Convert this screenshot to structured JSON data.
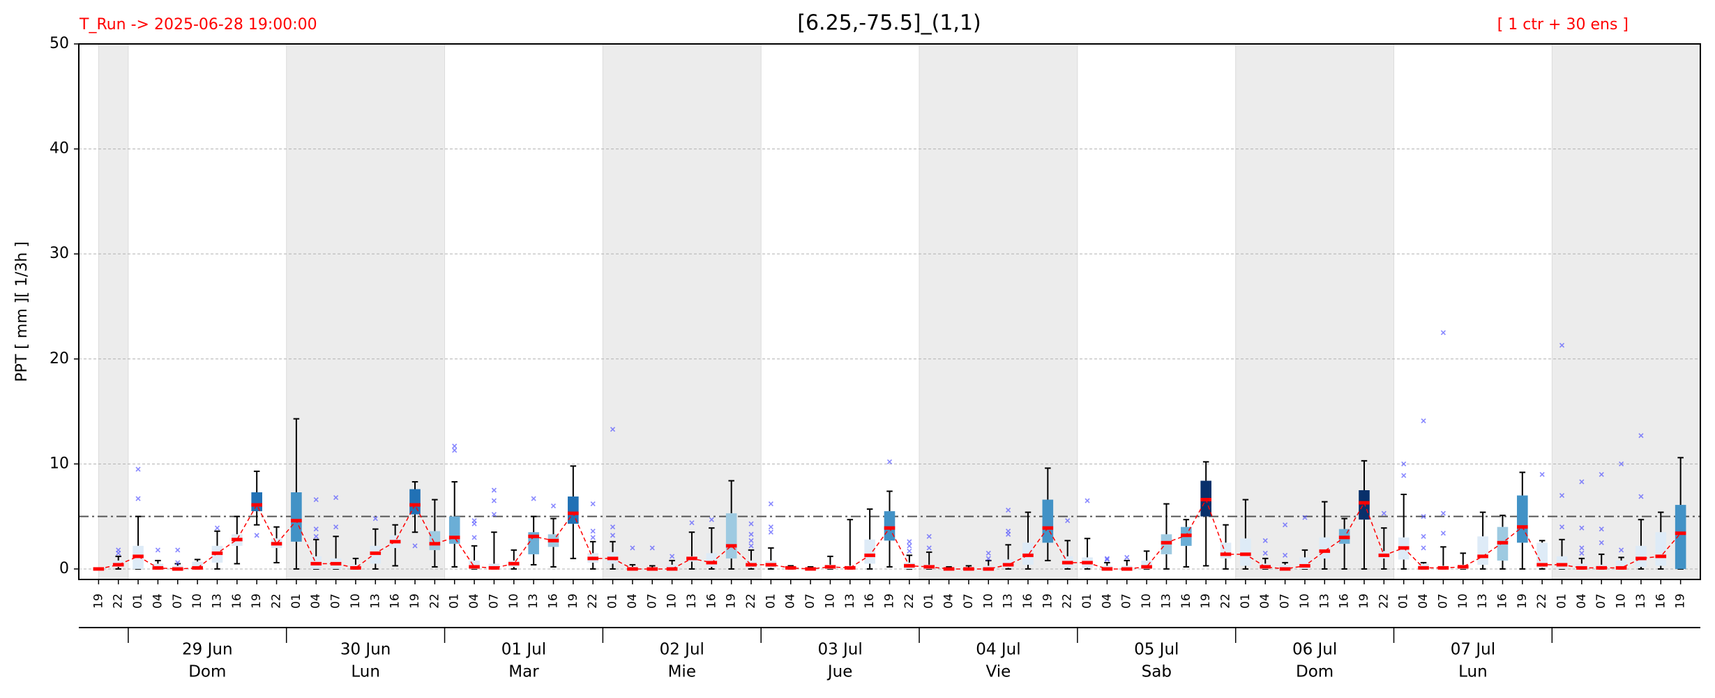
{
  "chart_data": {
    "type": "boxplot",
    "title": "[6.25,-75.5]_(1,1)",
    "run_label": "T_Run -> 2025-06-28  19:00:00",
    "members_label": "[ 1 ctr + 30 ens ]",
    "ylabel": "PPT  [ mm ][ 1/3h ]",
    "ylim": [
      -1,
      50
    ],
    "yticks": [
      0,
      10,
      20,
      30,
      40,
      50
    ],
    "grid": true,
    "threshold": 5,
    "line_color": "#ff0000",
    "flier_color": "#5555ff",
    "shade_color": "#ececec",
    "categories": [
      "19",
      "22",
      "01",
      "04",
      "07",
      "10",
      "13",
      "16",
      "19",
      "22",
      "01",
      "04",
      "07",
      "10",
      "13",
      "16",
      "19",
      "22",
      "01",
      "04",
      "07",
      "10",
      "13",
      "16",
      "19",
      "22",
      "01",
      "04",
      "07",
      "10",
      "13",
      "16",
      "19",
      "22",
      "01",
      "04",
      "07",
      "10",
      "13",
      "16",
      "19",
      "22",
      "01",
      "04",
      "07",
      "10",
      "13",
      "16",
      "19",
      "22",
      "01",
      "04",
      "07",
      "10",
      "13",
      "16",
      "19",
      "22",
      "01",
      "04",
      "07",
      "10",
      "13",
      "16",
      "19",
      "22",
      "01",
      "04",
      "07",
      "10",
      "13",
      "16",
      "19",
      "22",
      "01",
      "04",
      "07",
      "10",
      "13",
      "16",
      "19"
    ],
    "days": [
      {
        "date": "29 Jun",
        "weekday": "Dom"
      },
      {
        "date": "30 Jun",
        "weekday": "Lun"
      },
      {
        "date": "01 Jul",
        "weekday": "Mar"
      },
      {
        "date": "02 Jul",
        "weekday": "Mie"
      },
      {
        "date": "03 Jul",
        "weekday": "Jue"
      },
      {
        "date": "04 Jul",
        "weekday": "Vie"
      },
      {
        "date": "05 Jul",
        "weekday": "Sab"
      },
      {
        "date": "06 Jul",
        "weekday": "Dom"
      },
      {
        "date": "07 Jul",
        "weekday": "Lun"
      }
    ],
    "boxes": [
      {
        "low": 0,
        "q1": 0,
        "median": 0,
        "q3": 0,
        "high": 0,
        "fliers": [],
        "color": "#deebf7"
      },
      {
        "low": 0,
        "q1": 0.2,
        "median": 0.4,
        "q3": 0.8,
        "high": 1.2,
        "fliers": [
          1.5,
          1.8
        ],
        "color": "#deebf7"
      },
      {
        "low": 0,
        "q1": 0,
        "median": 1.2,
        "q3": 2.2,
        "high": 5,
        "fliers": [
          6.7,
          9.5
        ],
        "color": "#deebf7"
      },
      {
        "low": 0,
        "q1": 0,
        "median": 0.1,
        "q3": 0.5,
        "high": 0.8,
        "fliers": [
          1.8
        ],
        "color": "#deebf7"
      },
      {
        "low": 0,
        "q1": 0,
        "median": 0,
        "q3": 0.3,
        "high": 0.5,
        "fliers": [
          0.6,
          1.8
        ],
        "color": "#deebf7"
      },
      {
        "low": 0,
        "q1": 0,
        "median": 0.1,
        "q3": 0.7,
        "high": 0.9,
        "fliers": [],
        "color": "#deebf7"
      },
      {
        "low": 0,
        "q1": 0.6,
        "median": 1.5,
        "q3": 2.2,
        "high": 3.6,
        "fliers": [
          3.9
        ],
        "color": "#deebf7"
      },
      {
        "low": 0.5,
        "q1": 2.2,
        "median": 2.8,
        "q3": 3.3,
        "high": 5,
        "fliers": [],
        "color": "#deebf7"
      },
      {
        "low": 4.2,
        "q1": 5.5,
        "median": 6.1,
        "q3": 7.3,
        "high": 9.3,
        "fliers": [
          3.2
        ],
        "color": "#2171b5"
      },
      {
        "low": 0.6,
        "q1": 2,
        "median": 2.4,
        "q3": 2.9,
        "high": 4,
        "fliers": [],
        "color": "#deebf7"
      },
      {
        "low": 0,
        "q1": 2.6,
        "median": 4.6,
        "q3": 7.3,
        "high": 14.3,
        "fliers": [],
        "color": "#4292c6"
      },
      {
        "low": 0,
        "q1": 0,
        "median": 0.5,
        "q3": 1.2,
        "high": 2.8,
        "fliers": [
          3.1,
          3.8,
          6.6
        ],
        "color": "#deebf7"
      },
      {
        "low": 0,
        "q1": 0,
        "median": 0.5,
        "q3": 1,
        "high": 3.1,
        "fliers": [
          4,
          6.8
        ],
        "color": "#deebf7"
      },
      {
        "low": 0,
        "q1": 0,
        "median": 0.1,
        "q3": 0.4,
        "high": 1,
        "fliers": [],
        "color": "#deebf7"
      },
      {
        "low": 0,
        "q1": 0.5,
        "median": 1.5,
        "q3": 2.2,
        "high": 3.8,
        "fliers": [
          4.8
        ],
        "color": "#deebf7"
      },
      {
        "low": 0.3,
        "q1": 2,
        "median": 2.6,
        "q3": 3.2,
        "high": 4.2,
        "fliers": [],
        "color": "#deebf7"
      },
      {
        "low": 3.5,
        "q1": 5.2,
        "median": 6.1,
        "q3": 7.6,
        "high": 8.3,
        "fliers": [
          2.2
        ],
        "color": "#2171b5"
      },
      {
        "low": 0.2,
        "q1": 1.8,
        "median": 2.4,
        "q3": 3.6,
        "high": 6.6,
        "fliers": [],
        "color": "#9ecae1"
      },
      {
        "low": 0.2,
        "q1": 2.4,
        "median": 3,
        "q3": 5,
        "high": 8.3,
        "fliers": [
          11.3,
          11.7
        ],
        "color": "#6baed6"
      },
      {
        "low": 0,
        "q1": 0,
        "median": 0.2,
        "q3": 0.8,
        "high": 2.2,
        "fliers": [
          3,
          4.3,
          4.6
        ],
        "color": "#deebf7"
      },
      {
        "low": 0,
        "q1": 0,
        "median": 0.1,
        "q3": 0.5,
        "high": 3.5,
        "fliers": [
          5.2,
          6.5,
          7.5
        ],
        "color": "#deebf7"
      },
      {
        "low": 0,
        "q1": 0.2,
        "median": 0.5,
        "q3": 0.8,
        "high": 1.8,
        "fliers": [],
        "color": "#deebf7"
      },
      {
        "low": 0.4,
        "q1": 1.4,
        "median": 3.1,
        "q3": 3.5,
        "high": 5,
        "fliers": [
          6.7
        ],
        "color": "#6baed6"
      },
      {
        "low": 0.2,
        "q1": 2.1,
        "median": 2.7,
        "q3": 3.3,
        "high": 4.8,
        "fliers": [
          6
        ],
        "color": "#9ecae1"
      },
      {
        "low": 1,
        "q1": 4.3,
        "median": 5.3,
        "q3": 6.9,
        "high": 9.8,
        "fliers": [],
        "color": "#2171b5"
      },
      {
        "low": 0,
        "q1": 0.6,
        "median": 1,
        "q3": 1.5,
        "high": 2.6,
        "fliers": [
          3,
          3.6,
          6.2
        ],
        "color": "#deebf7"
      },
      {
        "low": 0,
        "q1": 0.5,
        "median": 1,
        "q3": 1.6,
        "high": 2.6,
        "fliers": [
          3.2,
          4,
          13.3
        ],
        "color": "#deebf7"
      },
      {
        "low": 0,
        "q1": 0,
        "median": 0,
        "q3": 0.2,
        "high": 0.4,
        "fliers": [
          2
        ],
        "color": "#deebf7"
      },
      {
        "low": 0,
        "q1": 0,
        "median": 0,
        "q3": 0.1,
        "high": 0.3,
        "fliers": [
          2
        ],
        "color": "#deebf7"
      },
      {
        "low": 0,
        "q1": 0,
        "median": 0,
        "q3": 0.4,
        "high": 0.8,
        "fliers": [
          1.2
        ],
        "color": "#deebf7"
      },
      {
        "low": 0,
        "q1": 0.7,
        "median": 1,
        "q3": 1.2,
        "high": 3.5,
        "fliers": [
          4.4
        ],
        "color": "#deebf7"
      },
      {
        "low": 0,
        "q1": 0.2,
        "median": 0.6,
        "q3": 1.5,
        "high": 3.9,
        "fliers": [
          4.7
        ],
        "color": "#deebf7"
      },
      {
        "low": 0,
        "q1": 1,
        "median": 2.2,
        "q3": 5.3,
        "high": 8.4,
        "fliers": [],
        "color": "#9ecae1"
      },
      {
        "low": 0,
        "q1": 0.1,
        "median": 0.4,
        "q3": 0.8,
        "high": 1.8,
        "fliers": [
          2.2,
          2.7,
          3.3,
          4.3
        ],
        "color": "#deebf7"
      },
      {
        "low": 0,
        "q1": 0.1,
        "median": 0.4,
        "q3": 0.8,
        "high": 2,
        "fliers": [
          3.5,
          4,
          6.2
        ],
        "color": "#deebf7"
      },
      {
        "low": 0,
        "q1": 0,
        "median": 0.1,
        "q3": 0.2,
        "high": 0.3,
        "fliers": [],
        "color": "#deebf7"
      },
      {
        "low": 0,
        "q1": 0,
        "median": 0,
        "q3": 0.1,
        "high": 0.2,
        "fliers": [],
        "color": "#deebf7"
      },
      {
        "low": 0,
        "q1": 0,
        "median": 0.2,
        "q3": 0.4,
        "high": 1.2,
        "fliers": [],
        "color": "#deebf7"
      },
      {
        "low": 0,
        "q1": 0,
        "median": 0.1,
        "q3": 0.3,
        "high": 4.7,
        "fliers": [],
        "color": "#deebf7"
      },
      {
        "low": 0,
        "q1": 0.5,
        "median": 1.3,
        "q3": 2.8,
        "high": 5.7,
        "fliers": [],
        "color": "#deebf7"
      },
      {
        "low": 0.2,
        "q1": 2.7,
        "median": 3.9,
        "q3": 5.5,
        "high": 7.4,
        "fliers": [
          10.2
        ],
        "color": "#4292c6"
      },
      {
        "low": 0,
        "q1": 0,
        "median": 0.3,
        "q3": 0.6,
        "high": 1.3,
        "fliers": [
          1.7,
          2.2,
          2.6
        ],
        "color": "#deebf7"
      },
      {
        "low": 0,
        "q1": 0,
        "median": 0.2,
        "q3": 0.4,
        "high": 1.6,
        "fliers": [
          2,
          3.1
        ],
        "color": "#deebf7"
      },
      {
        "low": 0,
        "q1": 0,
        "median": 0,
        "q3": 0.1,
        "high": 0.2,
        "fliers": [],
        "color": "#deebf7"
      },
      {
        "low": 0,
        "q1": 0,
        "median": 0,
        "q3": 0.1,
        "high": 0.3,
        "fliers": [],
        "color": "#deebf7"
      },
      {
        "low": 0,
        "q1": 0,
        "median": 0,
        "q3": 0.3,
        "high": 0.8,
        "fliers": [
          1,
          1.5
        ],
        "color": "#deebf7"
      },
      {
        "low": 0,
        "q1": 0.1,
        "median": 0.4,
        "q3": 0.9,
        "high": 2.3,
        "fliers": [
          3.3,
          3.6,
          5.6
        ],
        "color": "#deebf7"
      },
      {
        "low": 0,
        "q1": 0.4,
        "median": 1.3,
        "q3": 2.5,
        "high": 5.4,
        "fliers": [],
        "color": "#deebf7"
      },
      {
        "low": 0.8,
        "q1": 2.5,
        "median": 3.9,
        "q3": 6.6,
        "high": 9.6,
        "fliers": [],
        "color": "#4292c6"
      },
      {
        "low": 0,
        "q1": 0.1,
        "median": 0.6,
        "q3": 1.2,
        "high": 2.7,
        "fliers": [
          4.6
        ],
        "color": "#deebf7"
      },
      {
        "low": 0,
        "q1": 0.1,
        "median": 0.6,
        "q3": 1.1,
        "high": 2.9,
        "fliers": [
          6.5
        ],
        "color": "#deebf7"
      },
      {
        "low": 0,
        "q1": 0,
        "median": 0,
        "q3": 0.3,
        "high": 0.6,
        "fliers": [
          0.9,
          1
        ],
        "color": "#deebf7"
      },
      {
        "low": 0,
        "q1": 0,
        "median": 0,
        "q3": 0.3,
        "high": 0.8,
        "fliers": [
          1.1
        ],
        "color": "#deebf7"
      },
      {
        "low": 0,
        "q1": 0,
        "median": 0.2,
        "q3": 0.8,
        "high": 1.7,
        "fliers": [],
        "color": "#deebf7"
      },
      {
        "low": 0,
        "q1": 1.4,
        "median": 2.5,
        "q3": 3.3,
        "high": 6.2,
        "fliers": [],
        "color": "#9ecae1"
      },
      {
        "low": 0.2,
        "q1": 2.2,
        "median": 3.2,
        "q3": 4,
        "high": 4.7,
        "fliers": [],
        "color": "#6baed6"
      },
      {
        "low": 0.3,
        "q1": 5,
        "median": 6.6,
        "q3": 8.4,
        "high": 10.2,
        "fliers": [],
        "color": "#08306b"
      },
      {
        "low": 0,
        "q1": 1,
        "median": 1.4,
        "q3": 2.5,
        "high": 4.2,
        "fliers": [],
        "color": "#deebf7"
      },
      {
        "low": 0,
        "q1": 0.3,
        "median": 1.4,
        "q3": 2.9,
        "high": 6.6,
        "fliers": [],
        "color": "#deebf7"
      },
      {
        "low": 0,
        "q1": 0,
        "median": 0.2,
        "q3": 0.5,
        "high": 1,
        "fliers": [
          1.5,
          2.7
        ],
        "color": "#deebf7"
      },
      {
        "low": 0,
        "q1": 0,
        "median": 0,
        "q3": 0.4,
        "high": 0.6,
        "fliers": [
          1.3,
          4.2
        ],
        "color": "#deebf7"
      },
      {
        "low": 0,
        "q1": 0,
        "median": 0.3,
        "q3": 1.1,
        "high": 1.8,
        "fliers": [
          4.9
        ],
        "color": "#deebf7"
      },
      {
        "low": 0,
        "q1": 1,
        "median": 1.7,
        "q3": 3,
        "high": 6.4,
        "fliers": [],
        "color": "#deebf7"
      },
      {
        "low": 0,
        "q1": 2.4,
        "median": 3,
        "q3": 3.8,
        "high": 4.8,
        "fliers": [],
        "color": "#6baed6"
      },
      {
        "low": 0,
        "q1": 4.7,
        "median": 6.3,
        "q3": 7.5,
        "high": 10.3,
        "fliers": [],
        "color": "#08306b"
      },
      {
        "low": 0,
        "q1": 1,
        "median": 1.3,
        "q3": 1.7,
        "high": 3.9,
        "fliers": [
          5.3
        ],
        "color": "#deebf7"
      },
      {
        "low": 0,
        "q1": 0.9,
        "median": 2,
        "q3": 3,
        "high": 7.1,
        "fliers": [
          8.9,
          10
        ],
        "color": "#deebf7"
      },
      {
        "low": 0,
        "q1": 0,
        "median": 0.1,
        "q3": 0.5,
        "high": 0.6,
        "fliers": [
          2,
          3.1,
          5,
          14.1
        ],
        "color": "#deebf7"
      },
      {
        "low": 0,
        "q1": 0,
        "median": 0.1,
        "q3": 0.3,
        "high": 2.1,
        "fliers": [
          3.4,
          5.3,
          22.5
        ],
        "color": "#deebf7"
      },
      {
        "low": 0,
        "q1": 0,
        "median": 0.2,
        "q3": 0.4,
        "high": 1.5,
        "fliers": [],
        "color": "#deebf7"
      },
      {
        "low": 0,
        "q1": 0.4,
        "median": 1.2,
        "q3": 3.1,
        "high": 5.4,
        "fliers": [],
        "color": "#deebf7"
      },
      {
        "low": 0,
        "q1": 0.8,
        "median": 2.5,
        "q3": 4,
        "high": 5.1,
        "fliers": [],
        "color": "#9ecae1"
      },
      {
        "low": 0,
        "q1": 2.5,
        "median": 4,
        "q3": 7,
        "high": 9.2,
        "fliers": [],
        "color": "#4292c6"
      },
      {
        "low": 0,
        "q1": 0.1,
        "median": 0.4,
        "q3": 2.5,
        "high": 2.7,
        "fliers": [
          9
        ],
        "color": "#deebf7"
      },
      {
        "low": 0,
        "q1": 0,
        "median": 0.4,
        "q3": 1.2,
        "high": 2.8,
        "fliers": [
          4,
          7,
          21.3
        ],
        "color": "#deebf7"
      },
      {
        "low": 0,
        "q1": 0,
        "median": 0.1,
        "q3": 0.5,
        "high": 1,
        "fliers": [
          1.5,
          2,
          3.9,
          8.3
        ],
        "color": "#deebf7"
      },
      {
        "low": 0,
        "q1": 0,
        "median": 0.1,
        "q3": 0.4,
        "high": 1.4,
        "fliers": [
          2.5,
          3.8,
          9
        ],
        "color": "#deebf7"
      },
      {
        "low": 0,
        "q1": 0,
        "median": 0.1,
        "q3": 0.8,
        "high": 1.1,
        "fliers": [
          1.8,
          10
        ],
        "color": "#deebf7"
      },
      {
        "low": 0,
        "q1": 0.2,
        "median": 1,
        "q3": 2.2,
        "high": 4.7,
        "fliers": [
          6.9,
          12.7
        ],
        "color": "#deebf7"
      },
      {
        "low": 0,
        "q1": 0.3,
        "median": 1.2,
        "q3": 3.5,
        "high": 5.4,
        "fliers": [],
        "color": "#deebf7"
      },
      {
        "low": 0,
        "q1": 0,
        "median": 3.4,
        "q3": 6.1,
        "high": 10.6,
        "fliers": [],
        "color": "#4292c6"
      }
    ]
  }
}
